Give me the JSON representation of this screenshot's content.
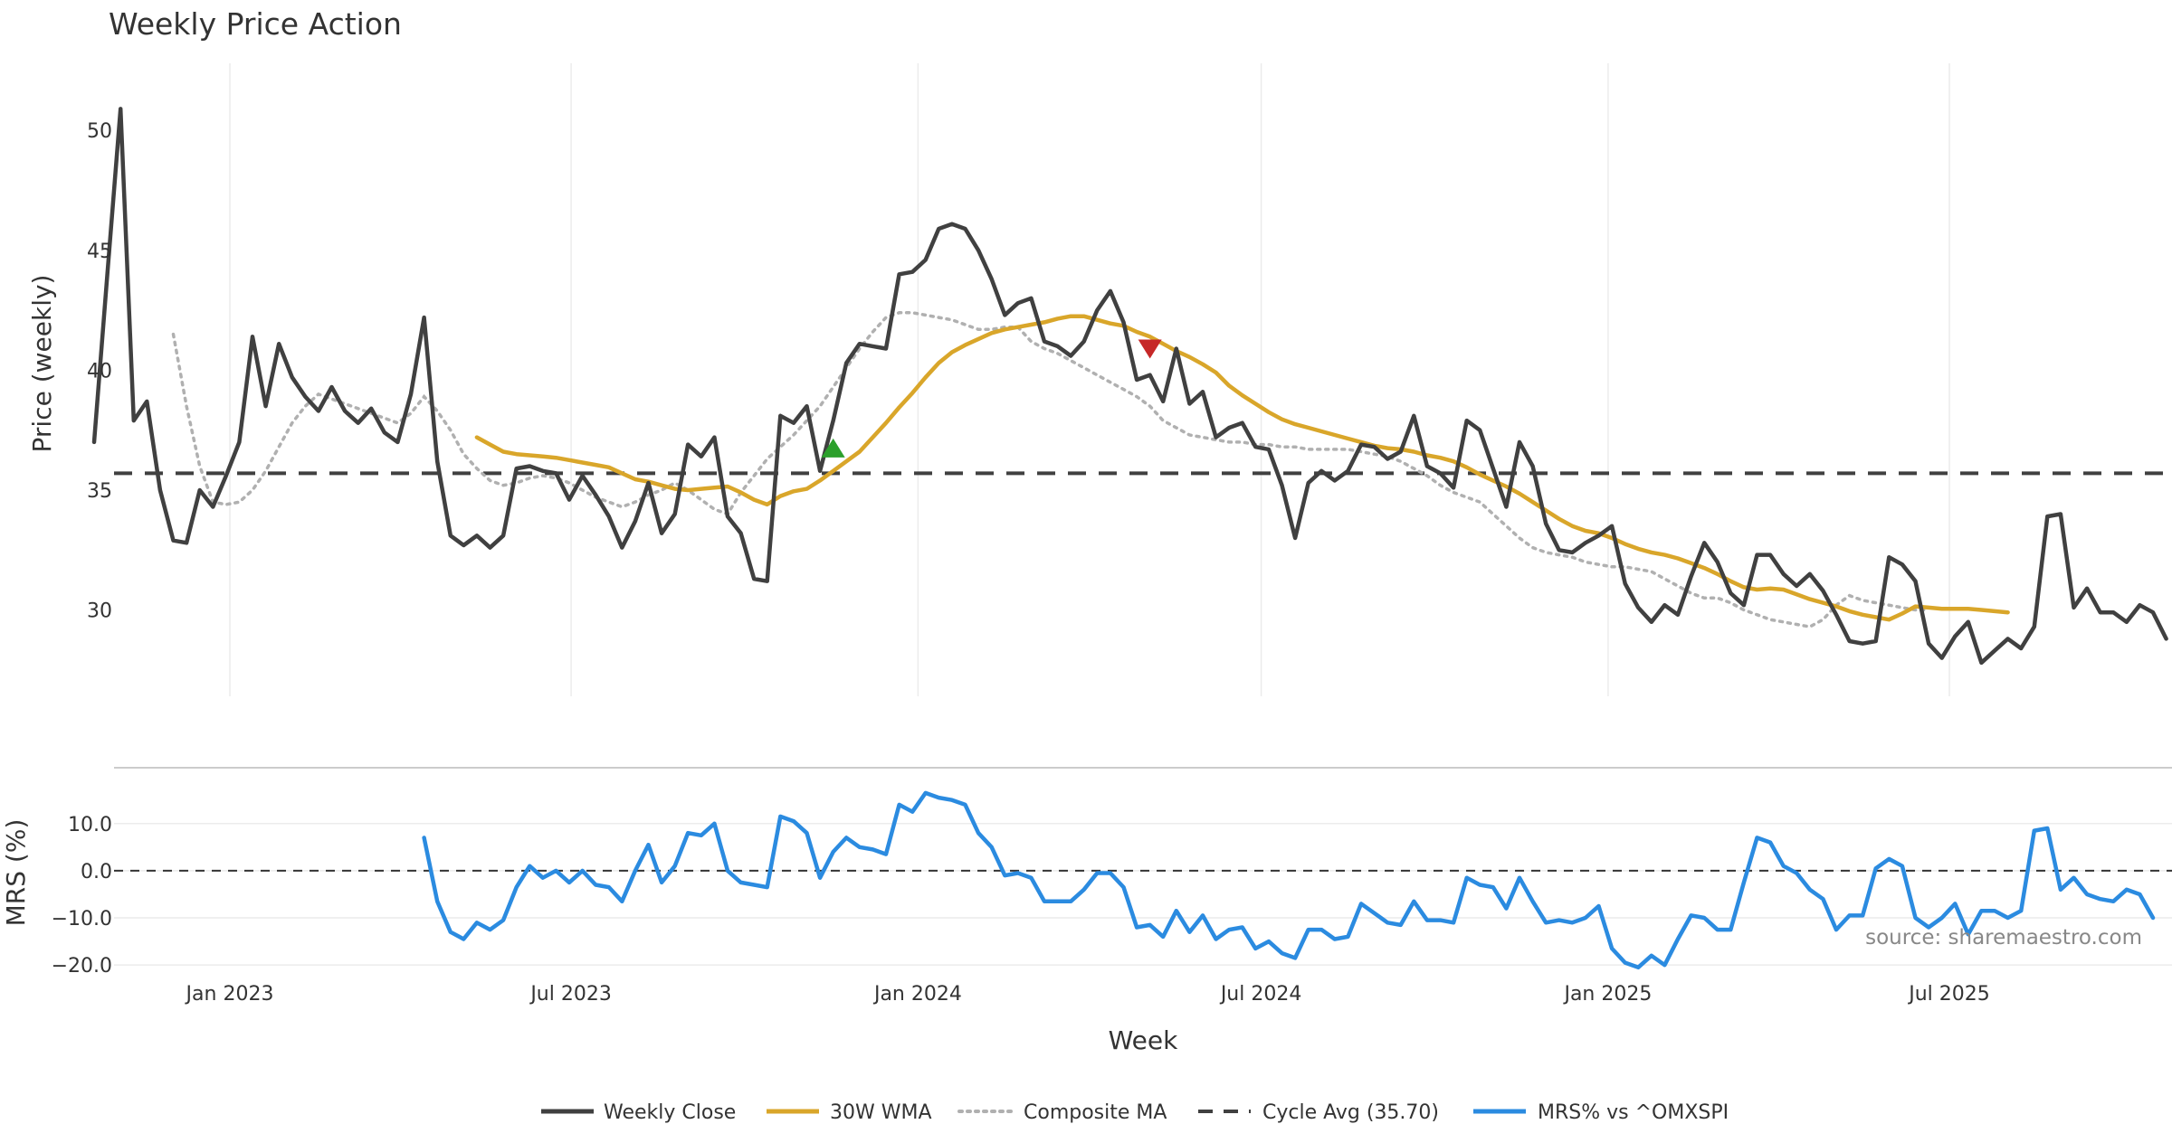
{
  "chart_data": [
    {
      "type": "line",
      "title": "Weekly Price Action",
      "ylabel": "Price (weekly)",
      "xlabel": "",
      "ylim": [
        26.4,
        52.8
      ],
      "yticks": [
        30,
        35,
        40,
        45,
        50
      ],
      "grid": "vertical",
      "x_start": "2022-10-21",
      "x_step_days": 7,
      "series": [
        {
          "name": "Weekly Close",
          "color": "#404040",
          "style": "solid",
          "start_index": 0,
          "values": [
            37.0,
            44.0,
            50.9,
            37.9,
            38.7,
            35.0,
            32.9,
            32.8,
            35.0,
            34.3,
            35.6,
            37.0,
            41.4,
            38.5,
            41.1,
            39.7,
            38.9,
            38.3,
            39.3,
            38.3,
            37.8,
            38.4,
            37.4,
            37.0,
            39.0,
            42.2,
            36.2,
            33.1,
            32.7,
            33.1,
            32.6,
            33.1,
            35.9,
            36.0,
            35.8,
            35.7,
            34.6,
            35.6,
            34.8,
            33.9,
            32.6,
            33.7,
            35.3,
            33.2,
            34.0,
            36.9,
            36.4,
            37.2,
            33.9,
            33.2,
            31.3,
            31.2,
            38.1,
            37.8,
            38.5,
            35.8,
            37.9,
            40.3,
            41.1,
            41.0,
            40.9,
            44.0,
            44.1,
            44.6,
            45.9,
            46.1,
            45.9,
            45.0,
            43.8,
            42.3,
            42.8,
            43.0,
            41.2,
            41.0,
            40.6,
            41.2,
            42.5,
            43.3,
            42.0,
            39.6,
            39.8,
            38.7,
            40.9,
            38.6,
            39.1,
            37.2,
            37.6,
            37.8,
            36.8,
            36.7,
            35.2,
            33.0,
            35.3,
            35.8,
            35.4,
            35.8,
            36.9,
            36.8,
            36.3,
            36.6,
            38.1,
            36.0,
            35.7,
            35.1,
            37.9,
            37.5,
            35.9,
            34.3,
            37.0,
            36.0,
            33.6,
            32.5,
            32.4,
            32.8,
            33.1,
            33.5,
            31.1,
            30.1,
            29.5,
            30.2,
            29.8,
            31.4,
            32.8,
            32.0,
            30.7,
            30.2,
            32.3,
            32.3,
            31.5,
            31.0,
            31.5,
            30.8,
            29.8,
            28.7,
            28.6,
            28.7,
            32.2,
            31.9,
            31.2,
            28.6,
            28.0,
            28.9,
            29.5,
            27.8,
            28.3,
            28.8,
            28.4,
            29.3,
            33.9,
            34.0,
            30.1,
            30.9,
            29.9,
            29.9,
            29.5,
            30.2,
            29.9,
            28.8
          ]
        },
        {
          "name": "30W WMA",
          "color": "#d9a62a",
          "style": "solid",
          "start_index": 29,
          "values": [
            37.2,
            36.9,
            36.6,
            36.5,
            36.45,
            36.4,
            36.35,
            36.25,
            36.15,
            36.05,
            35.95,
            35.7,
            35.45,
            35.35,
            35.2,
            35.05,
            35.0,
            35.05,
            35.1,
            35.15,
            34.9,
            34.6,
            34.4,
            34.75,
            34.95,
            35.05,
            35.4,
            35.8,
            36.2,
            36.6,
            37.2,
            37.8,
            38.45,
            39.05,
            39.7,
            40.3,
            40.75,
            41.05,
            41.3,
            41.55,
            41.7,
            41.8,
            41.9,
            42.0,
            42.15,
            42.25,
            42.25,
            42.1,
            41.95,
            41.85,
            41.6,
            41.4,
            41.1,
            40.8,
            40.55,
            40.25,
            39.9,
            39.35,
            38.95,
            38.6,
            38.25,
            37.95,
            37.75,
            37.6,
            37.45,
            37.3,
            37.15,
            37.0,
            36.85,
            36.75,
            36.7,
            36.6,
            36.45,
            36.35,
            36.2,
            35.95,
            35.65,
            35.4,
            35.15,
            34.85,
            34.5,
            34.15,
            33.8,
            33.5,
            33.3,
            33.2,
            33.0,
            32.75,
            32.55,
            32.4,
            32.3,
            32.15,
            31.95,
            31.75,
            31.5,
            31.2,
            30.95,
            30.85,
            30.9,
            30.85,
            30.65,
            30.45,
            30.3,
            30.15,
            29.95,
            29.8,
            29.7,
            29.6,
            29.85,
            30.15,
            30.1,
            30.05,
            30.05,
            30.05,
            30.0,
            29.95,
            29.9
          ]
        },
        {
          "name": "Composite MA",
          "color": "#b0b0b0",
          "style": "dotted",
          "start_index": 6,
          "values": [
            41.5,
            38.5,
            36.0,
            34.5,
            34.4,
            34.5,
            35.0,
            35.8,
            36.8,
            37.8,
            38.5,
            39.0,
            38.8,
            38.6,
            38.4,
            38.2,
            38.0,
            37.8,
            38.2,
            38.9,
            38.3,
            37.5,
            36.5,
            35.9,
            35.4,
            35.2,
            35.3,
            35.5,
            35.6,
            35.5,
            35.3,
            35.0,
            34.7,
            34.5,
            34.3,
            34.5,
            34.8,
            35.0,
            35.3,
            35.0,
            34.6,
            34.2,
            34.0,
            34.9,
            35.6,
            36.3,
            36.8,
            37.3,
            37.9,
            38.5,
            39.3,
            40.1,
            40.9,
            41.6,
            42.2,
            42.4,
            42.4,
            42.3,
            42.2,
            42.1,
            41.9,
            41.7,
            41.7,
            41.8,
            41.8,
            41.2,
            40.9,
            40.7,
            40.4,
            40.1,
            39.8,
            39.5,
            39.2,
            38.9,
            38.5,
            37.9,
            37.6,
            37.3,
            37.2,
            37.1,
            37.0,
            37.0,
            36.9,
            36.9,
            36.8,
            36.8,
            36.7,
            36.7,
            36.7,
            36.7,
            36.6,
            36.5,
            36.4,
            36.2,
            35.9,
            35.6,
            35.2,
            34.9,
            34.7,
            34.5,
            34.0,
            33.5,
            33.0,
            32.6,
            32.4,
            32.3,
            32.2,
            32.0,
            31.9,
            31.8,
            31.8,
            31.7,
            31.6,
            31.3,
            31.0,
            30.7,
            30.5,
            30.5,
            30.3,
            30.0,
            29.8,
            29.6,
            29.5,
            29.4,
            29.3,
            29.6,
            30.2,
            30.6,
            30.4,
            30.3,
            30.2,
            30.1,
            30.0,
            30.0
          ]
        },
        {
          "name": "Cycle Avg (35.70)",
          "color": "#404040",
          "style": "dashed",
          "value": 35.7
        }
      ],
      "markers": [
        {
          "type": "buy",
          "color": "#2ca02c",
          "week_index": 56,
          "y": 36.7
        },
        {
          "type": "sell",
          "color": "#c62828",
          "week_index": 80,
          "y": 40.9
        }
      ]
    },
    {
      "type": "line",
      "ylabel": "MRS (%)",
      "xlabel": "Week",
      "ylim": [
        -21.5,
        20.5
      ],
      "yticks": [
        10.0,
        0.0,
        -10.0,
        -20.0
      ],
      "ytick_labels": [
        "10.0",
        "0.0",
        "−10.0",
        "−20.0"
      ],
      "xticks": [
        "Jan 2023",
        "Jul 2023",
        "Jan 2024",
        "Jul 2024",
        "Jan 2025",
        "Jul 2025"
      ],
      "xtick_dates": [
        "2023-01-01",
        "2023-07-01",
        "2024-01-01",
        "2024-07-01",
        "2025-01-01",
        "2025-07-01"
      ],
      "series": [
        {
          "name": "MRS% vs ^OMXSPI",
          "color": "#2b8be0",
          "style": "solid",
          "start_index": 25,
          "values": [
            7.0,
            -6.5,
            -13.0,
            -14.5,
            -11.0,
            -12.5,
            -10.5,
            -3.5,
            1.0,
            -1.5,
            0.0,
            -2.5,
            0.0,
            -3.0,
            -3.5,
            -6.5,
            0.0,
            5.5,
            -2.5,
            1.0,
            8.0,
            7.5,
            10.0,
            0.0,
            -2.5,
            -3.0,
            -3.5,
            11.5,
            10.5,
            8.0,
            -1.5,
            4.0,
            7.0,
            5.0,
            4.5,
            3.5,
            14.0,
            12.5,
            16.5,
            15.5,
            15.0,
            14.0,
            8.0,
            5.0,
            -1.0,
            -0.5,
            -1.5,
            -6.5,
            -6.5,
            -6.5,
            -4.0,
            -0.5,
            -0.5,
            -3.5,
            -12.0,
            -11.5,
            -14.0,
            -8.5,
            -13.0,
            -9.5,
            -14.5,
            -12.5,
            -12.0,
            -16.5,
            -15.0,
            -17.5,
            -18.5,
            -12.5,
            -12.5,
            -14.5,
            -14.0,
            -7.0,
            -9.0,
            -11.0,
            -11.5,
            -6.5,
            -10.5,
            -10.5,
            -11.0,
            -1.5,
            -3.0,
            -3.5,
            -8.0,
            -1.5,
            -6.5,
            -11.0,
            -10.5,
            -11.0,
            -10.0,
            -7.5,
            -16.5,
            -19.5,
            -20.5,
            -18.0,
            -20.0,
            -14.5,
            -9.5,
            -10.0,
            -12.5,
            -12.5,
            -2.5,
            7.0,
            6.0,
            1.0,
            -0.5,
            -4.0,
            -6.0,
            -12.5,
            -9.5,
            -9.5,
            0.5,
            2.5,
            1.0,
            -10.0,
            -12.0,
            -10.0,
            -7.0,
            -13.5,
            -8.5,
            -8.5,
            -10.0,
            -8.5,
            8.5,
            9.0,
            -4.0,
            -1.5,
            -5.0,
            -6.0,
            -6.5,
            -4.0,
            -5.0,
            -10.0
          ]
        },
        {
          "name": "MRS zero line",
          "color": "#333333",
          "style": "dashed",
          "value": 0.0
        }
      ],
      "annotation": "source: sharemaestro.com"
    }
  ],
  "legend": {
    "position": "bottom-center",
    "items": [
      {
        "label": "Weekly Close",
        "color": "#404040",
        "style": "solid"
      },
      {
        "label": "30W WMA",
        "color": "#d9a62a",
        "style": "solid"
      },
      {
        "label": "Composite MA",
        "color": "#b0b0b0",
        "style": "dotted"
      },
      {
        "label": "Cycle Avg (35.70)",
        "color": "#404040",
        "style": "dashed"
      },
      {
        "label": "MRS% vs ^OMXSPI",
        "color": "#2b8be0",
        "style": "solid"
      }
    ]
  }
}
